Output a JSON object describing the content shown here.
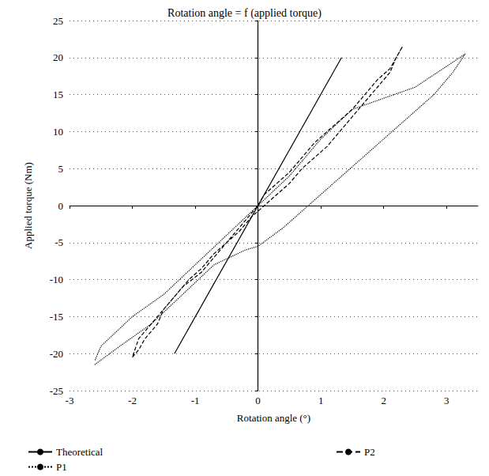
{
  "chart_data": {
    "type": "line",
    "title": "Rotation angle = f (applied torque)",
    "x_label": "Rotation angle (°)",
    "y_label": "Applied torque (Nm)",
    "xlim": [
      -3,
      3.5
    ],
    "xticks": [
      -3,
      -2,
      -1,
      0,
      1,
      2,
      3
    ],
    "ylim": [
      -25,
      25
    ],
    "yticks": [
      -25,
      -20,
      -15,
      -10,
      -5,
      0,
      5,
      10,
      15,
      20,
      25
    ],
    "grid": true,
    "legend": "bottom",
    "series": [
      {
        "name": "Theoretical",
        "color": "#000000",
        "line_style": "solid",
        "x": [
          -1.33,
          1.33
        ],
        "values": [
          -20,
          20
        ]
      },
      {
        "name": "P2",
        "color": "#000000",
        "line_style": "dashed",
        "x": [
          -2.0,
          -1.9,
          -1.8,
          -1.6,
          -1.5,
          -1.3,
          -1.2,
          -0.9,
          -0.7,
          -0.5,
          -0.3,
          -0.1,
          0.0,
          0.1,
          0.3,
          0.5,
          0.7,
          0.9,
          1.1,
          1.3,
          1.5,
          1.7,
          1.9,
          2.1,
          2.3,
          2.2,
          2.1,
          1.9,
          1.7,
          1.5,
          1.3,
          1.1,
          0.9,
          0.7,
          0.5,
          0.3,
          0.1,
          -0.1,
          -0.3,
          -0.5,
          -0.7,
          -0.9,
          -1.1,
          -1.3,
          -1.5,
          -1.7,
          -1.9,
          -2.0
        ],
        "values": [
          -20.5,
          -19.5,
          -18,
          -16,
          -14,
          -12,
          -11,
          -9,
          -7,
          -5,
          -3,
          -1,
          0,
          1.5,
          3,
          4.5,
          6.5,
          8.5,
          10,
          11.5,
          13,
          15,
          17,
          18.5,
          21.5,
          20,
          18,
          16,
          14,
          12,
          10,
          8,
          6.5,
          5,
          3,
          1.5,
          0,
          -1.5,
          -3.5,
          -5,
          -6.5,
          -8.5,
          -10,
          -12,
          -14,
          -16,
          -18,
          -20.5
        ]
      },
      {
        "name": "P1",
        "color": "#000000",
        "line_style": "dotted",
        "x": [
          -2.6,
          -2.2,
          -1.7,
          -1.2,
          -0.7,
          -0.2,
          0.0,
          0.4,
          0.8,
          1.2,
          1.6,
          2.0,
          2.4,
          2.8,
          3.1,
          3.3,
          2.5,
          1.5,
          1.0,
          0.5,
          0.0,
          -0.5,
          -1.0,
          -1.5,
          -2.0,
          -2.5,
          -2.6
        ],
        "values": [
          -21.5,
          -19,
          -16,
          -12,
          -8,
          -6,
          -5.5,
          -3,
          0,
          3,
          6,
          9,
          12,
          15,
          18,
          20.5,
          16,
          13,
          9,
          4,
          0,
          -4,
          -8,
          -12,
          -15,
          -19,
          -21
        ]
      }
    ]
  }
}
